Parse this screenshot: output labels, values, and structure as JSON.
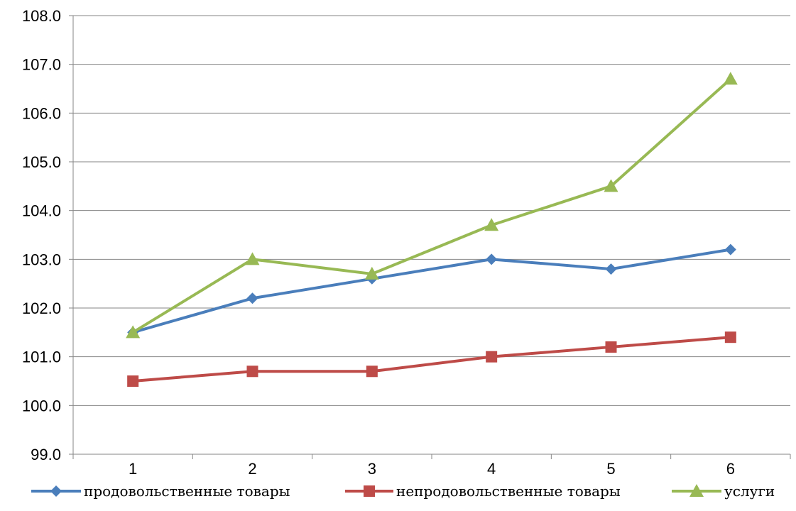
{
  "chart_data": {
    "type": "line",
    "x": [
      "1",
      "2",
      "3",
      "4",
      "5",
      "6"
    ],
    "ylim": [
      99.0,
      108.0
    ],
    "yticks": [
      "99.0",
      "100.0",
      "101.0",
      "102.0",
      "103.0",
      "104.0",
      "105.0",
      "106.0",
      "107.0",
      "108.0"
    ],
    "grid": true,
    "legend_position": "bottom",
    "series": [
      {
        "name": "продовольственные товары",
        "values": [
          101.5,
          102.2,
          102.6,
          103.0,
          102.8,
          103.2
        ],
        "color": "#4a7ebb",
        "marker": "diamond"
      },
      {
        "name": "непродовольственные товары",
        "values": [
          100.5,
          100.7,
          100.7,
          101.0,
          101.2,
          101.4
        ],
        "color": "#be4b48",
        "marker": "square"
      },
      {
        "name": "услуги",
        "values": [
          101.5,
          103.0,
          102.7,
          103.7,
          104.5,
          106.7
        ],
        "color": "#98b954",
        "marker": "triangle"
      }
    ]
  }
}
